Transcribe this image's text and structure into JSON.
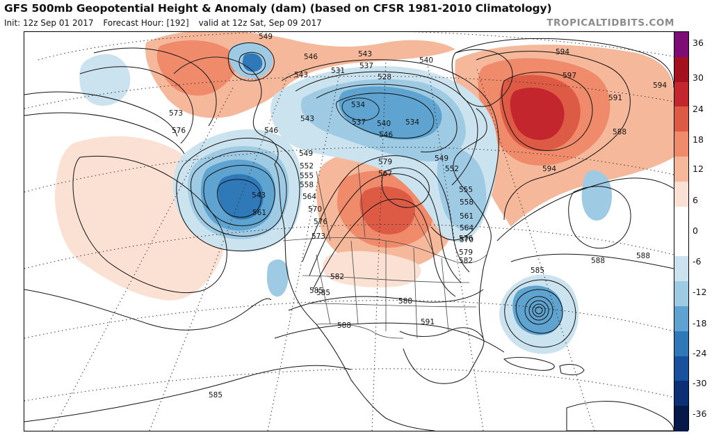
{
  "header": {
    "title": "GFS 500mb Geopotential Height & Anomaly (dam) (based on CFSR 1981-2010 Climatology)",
    "init": "Init: 12z Sep 01 2017",
    "forecast_hour": "Forecast Hour: [192]",
    "valid": "valid at 12z Sat, Sep 09 2017",
    "brand": "TROPICALTIDBITS.COM"
  },
  "colors": {
    "positive": [
      "#fbe1d3",
      "#f6b89b",
      "#ef8a6a",
      "#dd5a45",
      "#c3272d",
      "#a3111f",
      "#7e0c75"
    ],
    "negative": [
      "#cbe3ef",
      "#9fcae3",
      "#5fa4d0",
      "#2f79b9",
      "#1a519c",
      "#0d2f74",
      "#061a4a"
    ]
  },
  "colorbar": {
    "labels": [
      "36",
      "30",
      "24",
      "18",
      "12",
      "6",
      "0",
      "-6",
      "-12",
      "-18",
      "-24",
      "-30",
      "-36"
    ]
  },
  "map": {
    "height_labels": [
      "549",
      "546",
      "543",
      "543",
      "537",
      "540",
      "531",
      "528",
      "534",
      "537",
      "540",
      "546",
      "534",
      "543",
      "549",
      "552",
      "555",
      "558",
      "564",
      "570",
      "576",
      "579",
      "567",
      "573",
      "549",
      "552",
      "555",
      "558",
      "561",
      "564",
      "570",
      "576",
      "579",
      "582",
      "561",
      "543",
      "546",
      "573",
      "576",
      "594",
      "597",
      "594",
      "591",
      "588",
      "594",
      "591",
      "588",
      "588",
      "585",
      "585",
      "582",
      "585",
      "588",
      "588",
      "585"
    ],
    "features": [
      "geopotential-height-contours",
      "anomaly-shading",
      "coastlines",
      "political-borders",
      "lat-lon-grid"
    ]
  }
}
